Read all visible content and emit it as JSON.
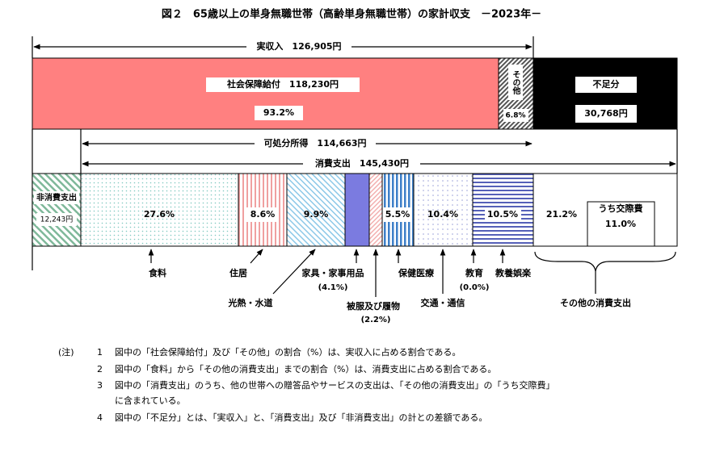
{
  "title": "図２　65歳以上の単身無職世帯（高齢単身無職世帯）の家計収支　－2023年－",
  "income": {
    "label": "実収入　126,905円",
    "social_security": {
      "label": "社会保障給付　118,230円",
      "share": "93.2%"
    },
    "other": {
      "label": "その他",
      "share": "6.8%"
    },
    "shortage": {
      "label": "不足分",
      "amount": "30,768円"
    }
  },
  "disposable_income": "可処分所得　114,663円",
  "consumption": "消費支出　145,430円",
  "non_consumption": {
    "label": "非消費支出",
    "amount": "12,243円"
  },
  "segments": [
    {
      "name": "食料",
      "share": "27.6%"
    },
    {
      "name": "住居",
      "share": "8.6%"
    },
    {
      "name": "光熱・水道",
      "share": "9.9%"
    },
    {
      "name": "家具・家事用品",
      "share": "(4.1%)"
    },
    {
      "name": "被服及び履物",
      "share": "(2.2%)"
    },
    {
      "name": "保健医療",
      "share": "5.5%"
    },
    {
      "name": "交通・通信",
      "share": "10.4%"
    },
    {
      "name": "教育",
      "share": "(0.0%)"
    },
    {
      "name": "教養娯楽",
      "share": "10.5%"
    },
    {
      "name": "その他の消費支出",
      "share": "21.2%"
    }
  ],
  "entertainment": {
    "label": "うち交際費",
    "share": "11.0%"
  },
  "notes": {
    "heading": "(注)",
    "items": [
      {
        "no": "1",
        "text": "図中の「社会保障給付」及び「その他」の割合（%）は、実収入に占める割合である。"
      },
      {
        "no": "2",
        "text": "図中の「食料」から「その他の消費支出」までの割合（%）は、消費支出に占める割合である。"
      },
      {
        "no": "3",
        "text": "図中の「消費支出」のうち、他の世帯への贈答品やサービスの支出は、「その他の消費支出」の「うち交際費」"
      },
      {
        "no": "",
        "text": "に含まれている。"
      },
      {
        "no": "4",
        "text": "図中の「不足分」とは、「実収入」と、「消費支出」及び「非消費支出」の計との差額である。"
      }
    ]
  }
}
